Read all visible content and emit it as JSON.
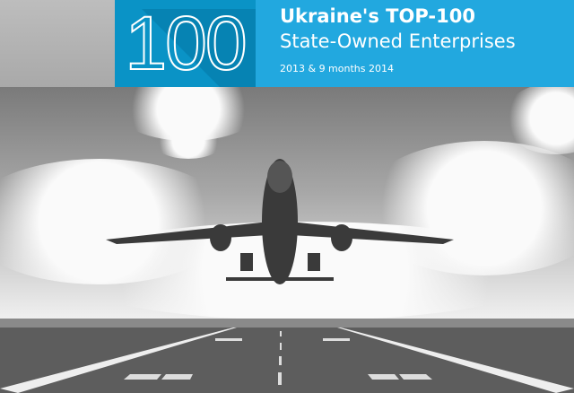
{
  "header": {
    "big_number": "100",
    "title": "Ukraine's TOP-100",
    "subtitle": "State-Owned Enterprises",
    "period": "2013 & 9 months 2014"
  },
  "colors": {
    "dark_blue": "#0a93c6",
    "light_blue": "#22a8df"
  },
  "image": {
    "subject": "airplane-taking-off-photo"
  }
}
